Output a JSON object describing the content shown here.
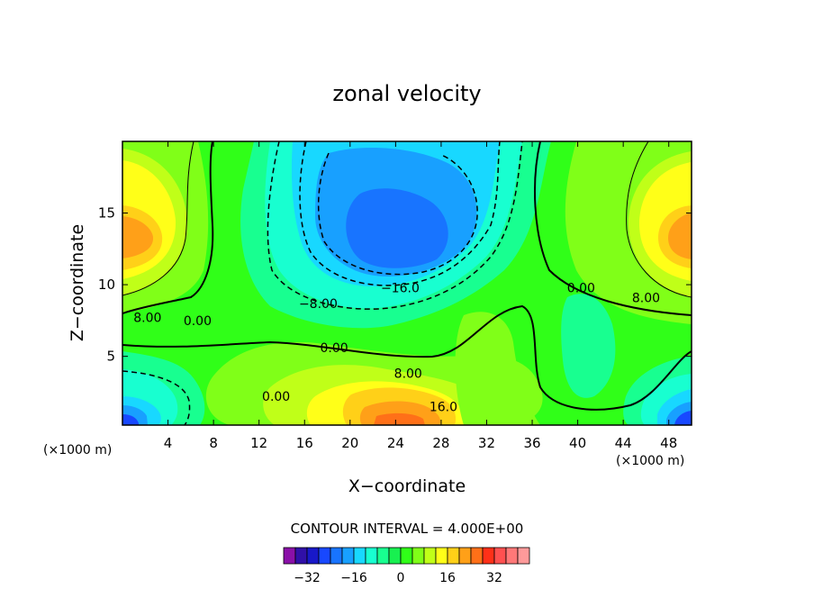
{
  "chart_data": {
    "type": "heatmap",
    "title": "zonal velocity",
    "xlabel": "X−coordinate",
    "ylabel": "Z−coordinate",
    "x_unit_left": "(×1000 m)",
    "x_unit_right": "(×1000 m)",
    "xlim": [
      0,
      50
    ],
    "ylim": [
      0.2,
      20
    ],
    "x_ticks": [
      4,
      8,
      12,
      16,
      20,
      24,
      28,
      32,
      36,
      40,
      44,
      48
    ],
    "y_ticks": [
      5,
      10,
      15
    ],
    "contour_interval_text": "CONTOUR INTERVAL = 4.000E+00",
    "contour_interval": 4,
    "contour_labels": [
      {
        "text": "8.00",
        "x": 2.2,
        "y": 7.7
      },
      {
        "text": "0.00",
        "x": 6.6,
        "y": 7.5
      },
      {
        "text": "0.00",
        "x": 40.3,
        "y": 9.8
      },
      {
        "text": "8.00",
        "x": 46.0,
        "y": 9.1
      },
      {
        "text": "−16.0",
        "x": 24.4,
        "y": 9.8
      },
      {
        "text": "−8.00",
        "x": 17.2,
        "y": 8.7
      },
      {
        "text": "0.00",
        "x": 18.6,
        "y": 5.6
      },
      {
        "text": "8.00",
        "x": 25.1,
        "y": 3.8
      },
      {
        "text": "16.0",
        "x": 28.2,
        "y": 1.5
      },
      {
        "text": "0.00",
        "x": 13.5,
        "y": 2.2
      }
    ],
    "colorbar": {
      "colors": [
        "#8a10a8",
        "#3010a8",
        "#1818c8",
        "#1848ff",
        "#1874ff",
        "#18a0ff",
        "#18d8ff",
        "#18ffd0",
        "#18ff90",
        "#18f050",
        "#30ff18",
        "#80ff18",
        "#c0ff18",
        "#ffff18",
        "#ffd018",
        "#ffa018",
        "#ff7018",
        "#ff3018",
        "#ff5050",
        "#ff7878",
        "#ff9a9a"
      ],
      "tick_labels": [
        "−32",
        "−16",
        "0",
        "16",
        "32"
      ],
      "tick_values": [
        -32,
        -16,
        0,
        16,
        32
      ]
    }
  }
}
